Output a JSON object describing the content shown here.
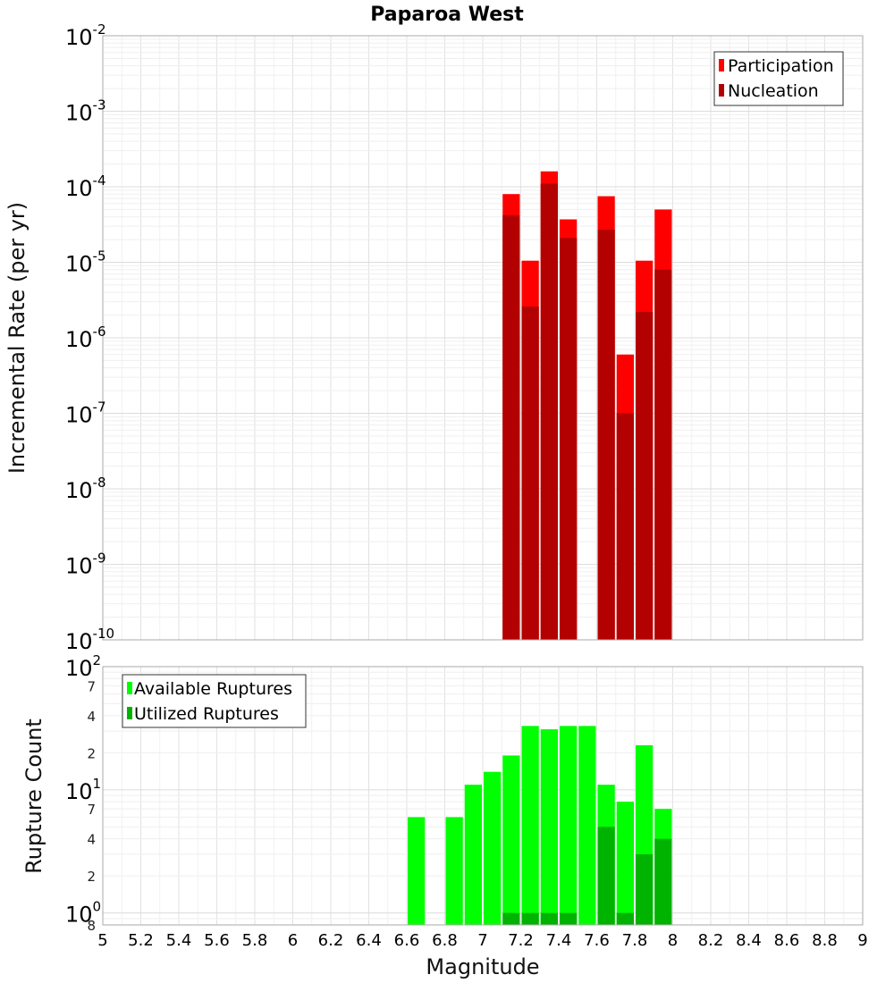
{
  "chart_data": [
    {
      "type": "bar",
      "title": "Paparoa West",
      "xlabel": "Magnitude",
      "ylabel": "Incremental Rate (per yr)",
      "yscale": "log",
      "ylim": [
        1e-10,
        0.01
      ],
      "xlim": [
        5,
        9
      ],
      "bin_width": 0.1,
      "grid": true,
      "legend_position": "top-right",
      "y_tick_exponents": [
        "-2",
        "-3",
        "-4",
        "-5",
        "-6",
        "-7",
        "-8",
        "-9",
        "-10"
      ],
      "y_tick_base": "10",
      "series": [
        {
          "name": "Participation",
          "color": "#ff0000",
          "x": [
            7.15,
            7.25,
            7.35,
            7.45,
            7.65,
            7.75,
            7.85,
            7.95
          ],
          "values": [
            8e-05,
            1.05e-05,
            0.00016,
            3.7e-05,
            7.5e-05,
            6e-07,
            1.05e-05,
            5e-05
          ]
        },
        {
          "name": "Nucleation",
          "color": "#b30000",
          "x": [
            7.15,
            7.25,
            7.35,
            7.45,
            7.65,
            7.75,
            7.85,
            7.95
          ],
          "values": [
            4.2e-05,
            2.6e-06,
            0.00011,
            2.1e-05,
            2.7e-05,
            1e-07,
            2.2e-06,
            8e-06
          ]
        }
      ]
    },
    {
      "type": "bar",
      "xlabel": "Magnitude",
      "ylabel": "Rupture Count",
      "yscale": "log",
      "ylim": [
        0.8,
        100
      ],
      "xlim": [
        5,
        9
      ],
      "bin_width": 0.1,
      "grid": true,
      "legend_position": "top-left",
      "x_ticks": [
        "5",
        "5.2",
        "5.4",
        "5.6",
        "5.8",
        "6",
        "6.2",
        "6.4",
        "6.6",
        "6.8",
        "7",
        "7.2",
        "7.4",
        "7.6",
        "7.8",
        "8",
        "8.2",
        "8.4",
        "8.6",
        "8.8",
        "9"
      ],
      "y_major": [
        {
          "base": "10",
          "exp": "2",
          "value": 100
        },
        {
          "base": "10",
          "exp": "1",
          "value": 10
        },
        {
          "base": "10",
          "exp": "0",
          "value": 1
        }
      ],
      "y_minor_labels": [
        {
          "label": "7",
          "value": 70
        },
        {
          "label": "4",
          "value": 40
        },
        {
          "label": "2",
          "value": 20
        },
        {
          "label": "7",
          "value": 7
        },
        {
          "label": "4",
          "value": 4
        },
        {
          "label": "2",
          "value": 2
        },
        {
          "label": "8",
          "value": 0.8
        }
      ],
      "series": [
        {
          "name": "Available Ruptures",
          "color": "#00ff00",
          "x": [
            6.65,
            6.85,
            6.95,
            7.05,
            7.15,
            7.25,
            7.35,
            7.45,
            7.55,
            7.65,
            7.75,
            7.85,
            7.95
          ],
          "values": [
            6,
            6,
            11,
            14,
            19,
            33,
            31,
            33,
            33,
            11,
            8,
            23,
            7
          ]
        },
        {
          "name": "Utilized Ruptures",
          "color": "#00b300",
          "x": [
            7.15,
            7.25,
            7.35,
            7.45,
            7.65,
            7.75,
            7.85,
            7.95
          ],
          "values": [
            1,
            1,
            1,
            1,
            5,
            1,
            3,
            4
          ]
        }
      ]
    }
  ]
}
